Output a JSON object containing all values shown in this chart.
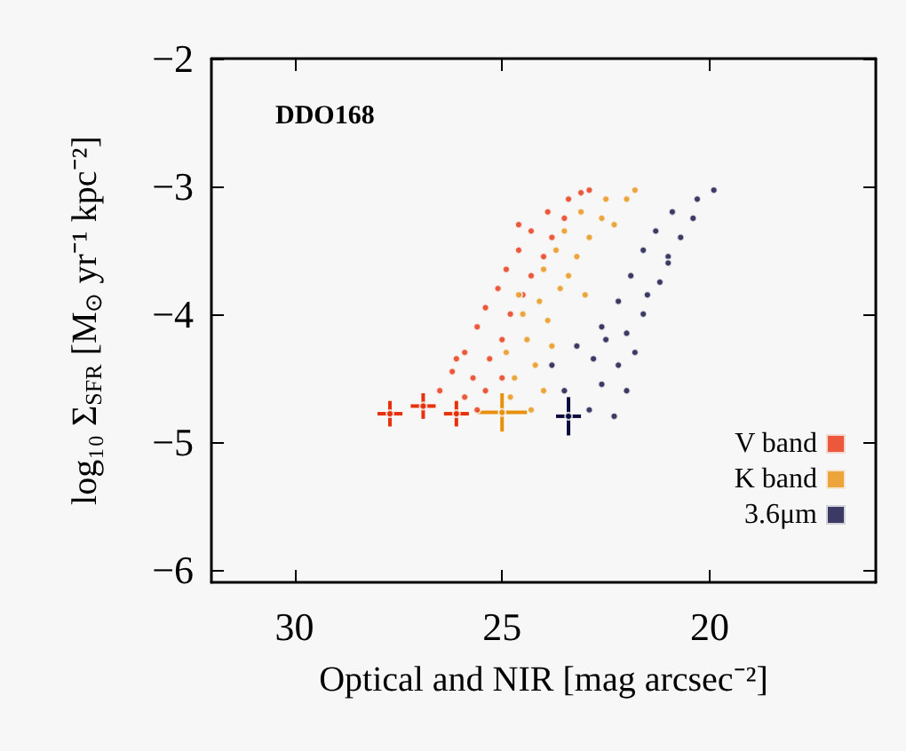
{
  "chart_data": {
    "type": "scatter",
    "annotations": [
      "DDO168"
    ],
    "xlabel": "Optical and NIR [mag arcsec⁻²]",
    "ylabel": "log₁₀ Σ$_{SFR}$ [M$_{⊙}$ yr⁻¹ kpc⁻²]",
    "xlim": [
      32,
      16
    ],
    "xticks": [
      30,
      25,
      20
    ],
    "ylim": [
      -6.1,
      -2
    ],
    "yticks": [
      -2,
      -3,
      -4,
      -5,
      -6
    ],
    "grid": false,
    "legend": "bottom right",
    "marker": "circle",
    "series": [
      {
        "name": "V band",
        "color": "#e8300a",
        "x": [
          27.7,
          26.9,
          26.1,
          26.5,
          25.9,
          25.6,
          26.2,
          25.7,
          25.4,
          25.9,
          25.3,
          25.6,
          25.0,
          25.4,
          24.8,
          25.1,
          24.5,
          24.9,
          24.3,
          24.6,
          24.0,
          24.3,
          23.8,
          23.9,
          23.5,
          23.4,
          23.1,
          22.9,
          24.6,
          25.0,
          26.1
        ],
        "values": [
          -4.78,
          -4.72,
          -4.78,
          -4.6,
          -4.65,
          -4.75,
          -4.45,
          -4.5,
          -4.6,
          -4.3,
          -4.35,
          -4.1,
          -4.2,
          -3.95,
          -4.0,
          -3.8,
          -3.85,
          -3.65,
          -3.7,
          -3.5,
          -3.55,
          -3.35,
          -3.4,
          -3.2,
          -3.25,
          -3.1,
          -3.05,
          -3.03,
          -3.3,
          -4.5,
          -4.35
        ],
        "errors": [
          0.1,
          0.1,
          0.1,
          null,
          null,
          null,
          null,
          null,
          null,
          null,
          null,
          null,
          null,
          null,
          null,
          null,
          null,
          null,
          null,
          null,
          null,
          null,
          null,
          null,
          null,
          null,
          null,
          null,
          null,
          null,
          null
        ],
        "xerrors": [
          0.3,
          0.3,
          0.3,
          null,
          null,
          null,
          null,
          null,
          null,
          null,
          null,
          null,
          null,
          null,
          null,
          null,
          null,
          null,
          null,
          null,
          null,
          null,
          null,
          null,
          null,
          null,
          null,
          null,
          null,
          null,
          null
        ]
      },
      {
        "name": "K band",
        "color": "#e8900a",
        "x": [
          25.0,
          24.3,
          24.0,
          24.7,
          24.2,
          24.9,
          24.4,
          23.8,
          24.5,
          23.9,
          24.6,
          24.1,
          23.6,
          24.0,
          23.4,
          23.7,
          23.2,
          23.5,
          22.9,
          23.1,
          22.6,
          22.5,
          22.0,
          21.8,
          22.3,
          23.0,
          24.8
        ],
        "values": [
          -4.77,
          -4.75,
          -4.6,
          -4.5,
          -4.4,
          -4.3,
          -4.2,
          -4.25,
          -4.0,
          -4.05,
          -3.85,
          -3.9,
          -3.8,
          -3.65,
          -3.7,
          -3.5,
          -3.55,
          -3.35,
          -3.4,
          -3.2,
          -3.25,
          -3.1,
          -3.1,
          -3.03,
          -3.3,
          -3.85,
          -4.65
        ],
        "errors": [
          0.15,
          null,
          null,
          null,
          null,
          null,
          null,
          null,
          null,
          null,
          null,
          null,
          null,
          null,
          null,
          null,
          null,
          null,
          null,
          null,
          null,
          null,
          null,
          null,
          null,
          null,
          null
        ],
        "xerrors": [
          0.6,
          null,
          null,
          null,
          null,
          null,
          null,
          null,
          null,
          null,
          null,
          null,
          null,
          null,
          null,
          null,
          null,
          null,
          null,
          null,
          null,
          null,
          null,
          null,
          null,
          null,
          null
        ]
      },
      {
        "name": "3.6μm",
        "color": "#0a0a40",
        "x": [
          23.4,
          22.9,
          22.3,
          23.5,
          23.8,
          23.2,
          22.6,
          22.0,
          22.8,
          22.2,
          21.8,
          22.6,
          22.0,
          21.6,
          22.2,
          21.5,
          21.9,
          21.2,
          21.6,
          21.0,
          21.3,
          20.7,
          20.9,
          20.4,
          20.3,
          19.9,
          21.0,
          22.5
        ],
        "values": [
          -4.8,
          -4.75,
          -4.8,
          -4.6,
          -4.4,
          -4.25,
          -4.55,
          -4.6,
          -4.35,
          -4.4,
          -4.3,
          -4.1,
          -4.15,
          -4.0,
          -3.9,
          -3.85,
          -3.7,
          -3.75,
          -3.5,
          -3.55,
          -3.35,
          -3.4,
          -3.2,
          -3.25,
          -3.1,
          -3.03,
          -3.6,
          -4.2
        ],
        "errors": [
          0.15,
          null,
          null,
          null,
          null,
          null,
          null,
          null,
          null,
          null,
          null,
          null,
          null,
          null,
          null,
          null,
          null,
          null,
          null,
          null,
          null,
          null,
          null,
          null,
          null,
          null,
          null,
          null
        ],
        "xerrors": [
          0.3,
          null,
          null,
          null,
          null,
          null,
          null,
          null,
          null,
          null,
          null,
          null,
          null,
          null,
          null,
          null,
          null,
          null,
          null,
          null,
          null,
          null,
          null,
          null,
          null,
          null,
          null,
          null
        ]
      }
    ]
  }
}
